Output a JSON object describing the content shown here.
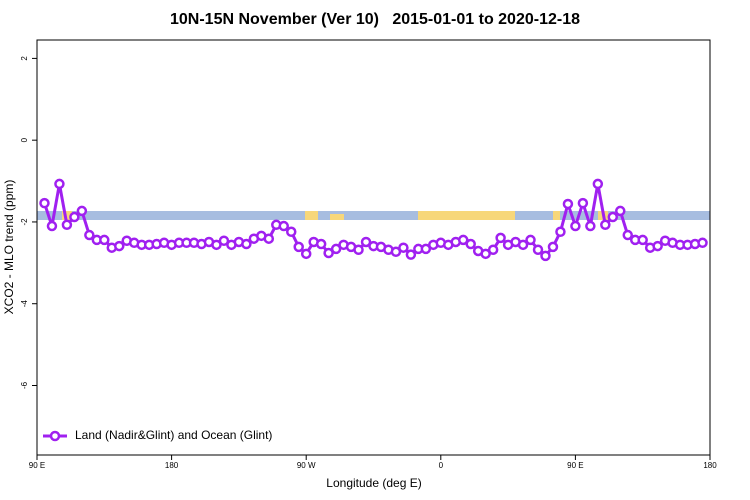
{
  "chart_data": {
    "type": "line",
    "title": "10N-15N November (Ver 10)   2015-01-01 to 2020-12-18",
    "x_label": "Longitude (deg E)",
    "y_label": "XCO2 - MLO trend (ppm)",
    "xlim": [
      90,
      540
    ],
    "xticks": [
      {
        "value": 90,
        "label": "90 E"
      },
      180,
      {
        "value": 270,
        "label": "90 W"
      },
      {
        "value": 360,
        "label": "0"
      },
      {
        "value": 450,
        "label": "90 E"
      },
      {
        "value": 540,
        "label": "180"
      }
    ],
    "ylim": [
      -7.7,
      2.45
    ],
    "yticks": [
      2,
      0,
      -2,
      -4,
      -6
    ],
    "legend": "bottom-left",
    "x": [
      95,
      100,
      105,
      110,
      115,
      120,
      125,
      130,
      135,
      140,
      145,
      150,
      155,
      160,
      165,
      170,
      175,
      180,
      185,
      190,
      195,
      200,
      205,
      210,
      215,
      220,
      225,
      230,
      235,
      240,
      245,
      250,
      255,
      260,
      265,
      270,
      275,
      280,
      285,
      290,
      295,
      300,
      305,
      310,
      315,
      320,
      325,
      330,
      335,
      340,
      345,
      350,
      355,
      360,
      365,
      370,
      375,
      380,
      385,
      390,
      395,
      400,
      405,
      410,
      415,
      420,
      425,
      430,
      435,
      440,
      445,
      450,
      455,
      460,
      465,
      470,
      475,
      480,
      485,
      490,
      495,
      500,
      505,
      510,
      515,
      520,
      525,
      530,
      535
    ],
    "series": [
      {
        "name": "Land (Nadir&Glint) and Ocean (Glint)",
        "color": "#a020f0",
        "values": [
          -1.54,
          -2.1,
          -1.07,
          -2.07,
          -1.88,
          -1.73,
          -2.32,
          -2.44,
          -2.44,
          -2.63,
          -2.59,
          -2.46,
          -2.51,
          -2.56,
          -2.56,
          -2.54,
          -2.51,
          -2.56,
          -2.51,
          -2.51,
          -2.51,
          -2.54,
          -2.49,
          -2.56,
          -2.46,
          -2.56,
          -2.49,
          -2.54,
          -2.41,
          -2.34,
          -2.41,
          -2.07,
          -2.1,
          -2.24,
          -2.61,
          -2.78,
          -2.49,
          -2.54,
          -2.76,
          -2.66,
          -2.56,
          -2.61,
          -2.68,
          -2.49,
          -2.59,
          -2.61,
          -2.68,
          -2.73,
          -2.63,
          -2.8,
          -2.66,
          -2.66,
          -2.56,
          -2.51,
          -2.56,
          -2.49,
          -2.44,
          -2.54,
          -2.71,
          -2.78,
          -2.68,
          -2.39,
          -2.56,
          -2.49,
          -2.56,
          -2.44,
          -2.68,
          -2.83,
          -2.61,
          -2.24,
          -1.56,
          -2.1,
          -1.54,
          -2.1,
          -1.07,
          -2.07,
          -1.88,
          -1.73,
          -2.32,
          -2.44,
          -2.44,
          -2.63,
          -2.59,
          -2.46,
          -2.51,
          -2.56,
          -2.56,
          -2.54,
          -2.51
        ]
      }
    ]
  }
}
